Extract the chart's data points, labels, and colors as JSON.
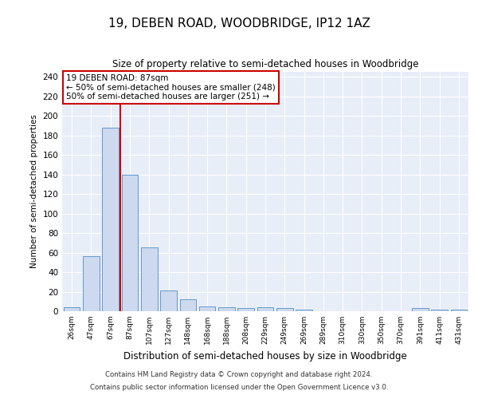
{
  "title": "19, DEBEN ROAD, WOODBRIDGE, IP12 1AZ",
  "subtitle": "Size of property relative to semi-detached houses in Woodbridge",
  "xlabel": "Distribution of semi-detached houses by size in Woodbridge",
  "ylabel": "Number of semi-detached properties",
  "bar_color": "#ccd9ee",
  "bar_edge_color": "#6699cc",
  "background_color": "#e8eef8",
  "grid_color": "#ffffff",
  "categories": [
    "26sqm",
    "47sqm",
    "67sqm",
    "87sqm",
    "107sqm",
    "127sqm",
    "148sqm",
    "168sqm",
    "188sqm",
    "208sqm",
    "229sqm",
    "249sqm",
    "269sqm",
    "289sqm",
    "310sqm",
    "330sqm",
    "350sqm",
    "370sqm",
    "391sqm",
    "411sqm",
    "431sqm"
  ],
  "values": [
    4,
    56,
    188,
    140,
    65,
    21,
    12,
    5,
    4,
    3,
    4,
    3,
    2,
    0,
    0,
    0,
    0,
    0,
    3,
    2,
    2
  ],
  "property_label": "19 DEBEN ROAD: 87sqm",
  "smaller_count": 248,
  "larger_count": 251,
  "red_line_color": "#cc0000",
  "red_line_index": 3,
  "ylim": [
    0,
    245
  ],
  "yticks": [
    0,
    20,
    40,
    60,
    80,
    100,
    120,
    140,
    160,
    180,
    200,
    220,
    240
  ],
  "footnote1": "Contains HM Land Registry data © Crown copyright and database right 2024.",
  "footnote2": "Contains public sector information licensed under the Open Government Licence v3.0."
}
